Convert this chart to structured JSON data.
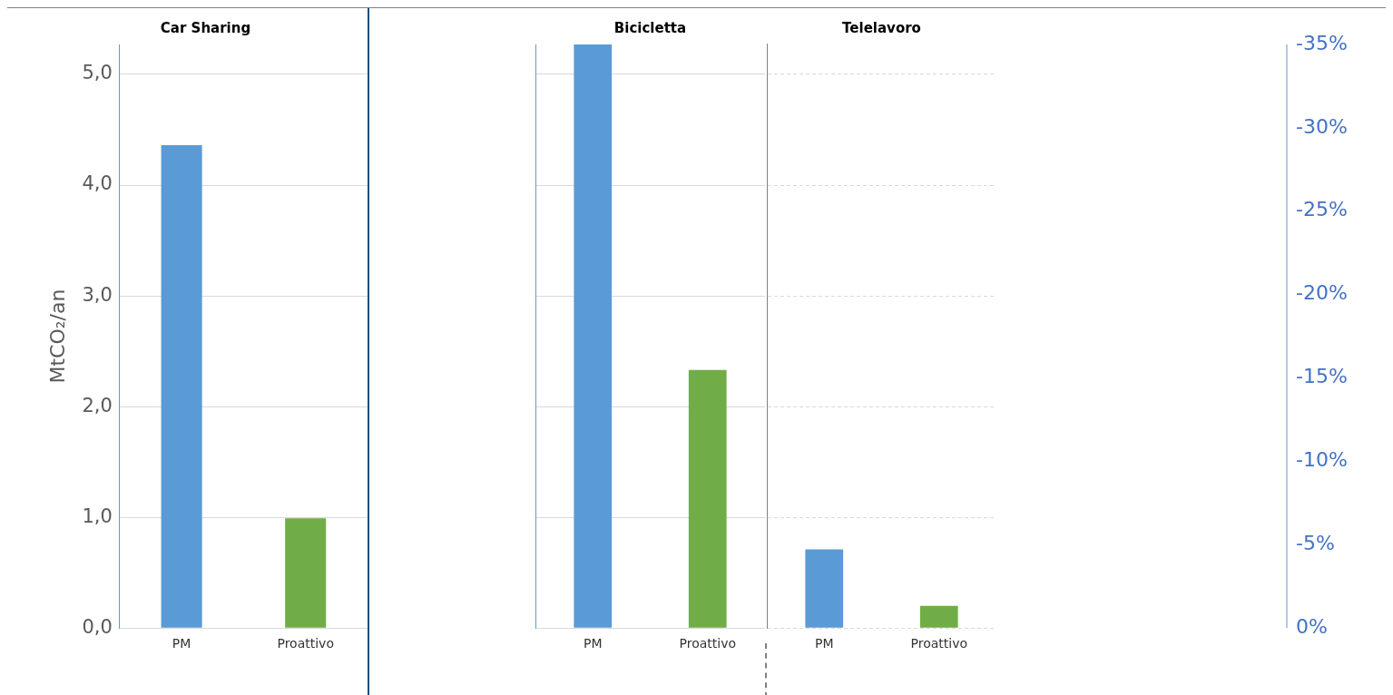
{
  "chart_data": [
    {
      "type": "bar",
      "title": "Car Sharing",
      "ylabel": "MtCO₂/an",
      "categories": [
        "PM",
        "Proattivo"
      ],
      "values": [
        4.36,
        0.99
      ],
      "colors": [
        "#5b9bd5",
        "#70ad47"
      ],
      "ylim": [
        0,
        5.27
      ],
      "yticks": [
        {
          "value": 0,
          "label": "0,0"
        },
        {
          "value": 1,
          "label": "1,0"
        },
        {
          "value": 2,
          "label": "2,0"
        },
        {
          "value": 3,
          "label": "3,0"
        },
        {
          "value": 4,
          "label": "4,0"
        },
        {
          "value": 5,
          "label": "5,0"
        }
      ],
      "grid": "y"
    },
    {
      "type": "bar",
      "title": "Bicicletta",
      "categories": [
        "PM",
        "Proattivo"
      ],
      "values": [
        5.27,
        2.33
      ],
      "colors": [
        "#5b9bd5",
        "#70ad47"
      ],
      "ylim": [
        0,
        5.27
      ],
      "yticks": [
        0,
        1,
        2,
        3,
        4,
        5
      ],
      "grid": "y",
      "tick_labels": "x"
    },
    {
      "type": "bar",
      "title": "Telelavoro",
      "categories": [
        "PM",
        "Proattivo"
      ],
      "values": [
        0.71,
        0.2
      ],
      "colors": [
        "#5b9bd5",
        "#70ad47"
      ],
      "ylim": [
        0,
        5.27
      ],
      "yticks": [
        0,
        1,
        2,
        3,
        4,
        5
      ],
      "grid": "y",
      "tick_labels": "x",
      "y2lim": [
        0,
        -35
      ],
      "y2ticks": [
        {
          "value": 0,
          "label": "0%"
        },
        {
          "value": -5,
          "label": "-5%"
        },
        {
          "value": -10,
          "label": "-10%"
        },
        {
          "value": -15,
          "label": "-15%"
        },
        {
          "value": -20,
          "label": "-20%"
        },
        {
          "value": -25,
          "label": "-25%"
        },
        {
          "value": -30,
          "label": "-30%"
        },
        {
          "value": -35,
          "label": "-35%"
        }
      ]
    }
  ]
}
